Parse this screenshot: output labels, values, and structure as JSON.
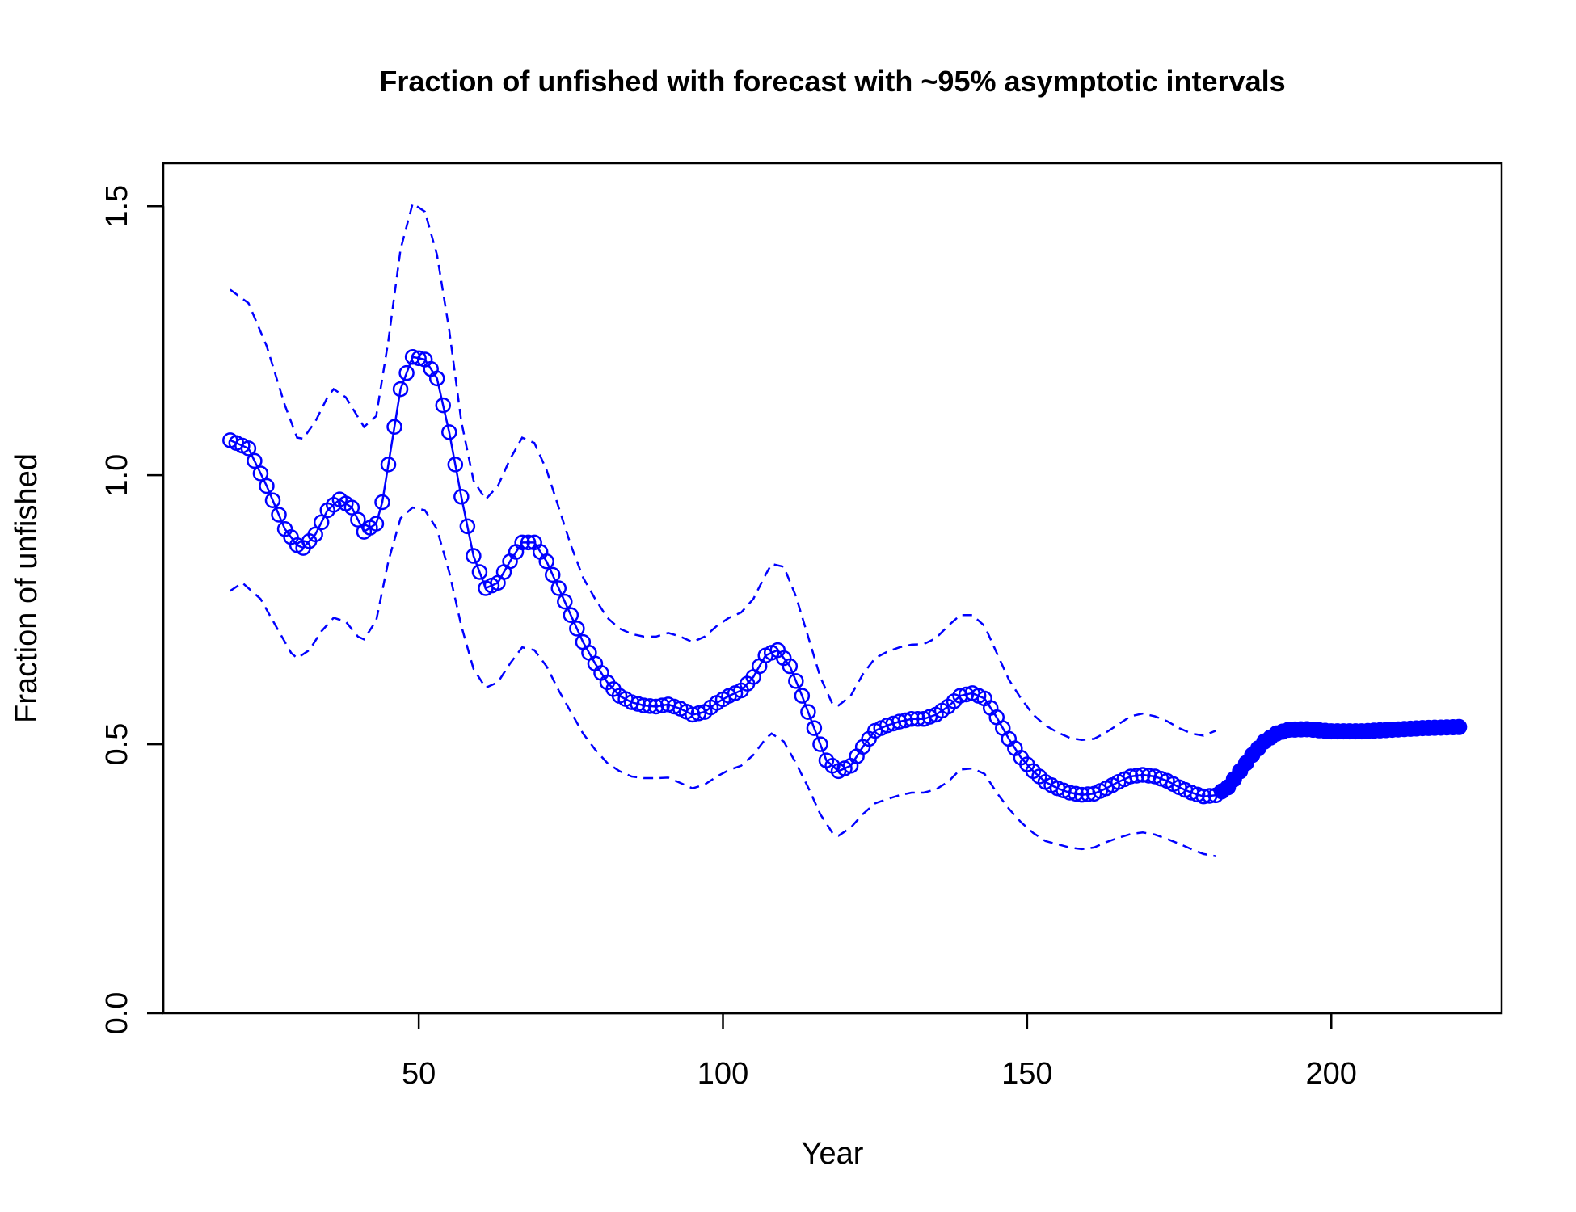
{
  "chart_data": {
    "type": "line",
    "title": "Fraction of unfished with forecast with ~95% asymptotic intervals",
    "xlabel": "Year",
    "ylabel": "Fraction of unfished",
    "xlim": [
      8,
      228
    ],
    "ylim": [
      0,
      1.58
    ],
    "x_ticks": [
      50,
      100,
      150,
      200
    ],
    "y_ticks": [
      0.0,
      0.5,
      1.0,
      1.5
    ],
    "x_tick_labels": [
      "50",
      "100",
      "150",
      "200"
    ],
    "y_tick_labels": [
      "0.0",
      "0.5",
      "1.0",
      "1.5"
    ],
    "grid": false,
    "colors": {
      "series": "#0000ff",
      "axis": "#000000"
    },
    "series": [
      {
        "role": "estimate",
        "style": "line-with-open-circles",
        "x_range": [
          19,
          181
        ],
        "points": [
          [
            19,
            1.065
          ],
          [
            22,
            1.05
          ],
          [
            25,
            0.98
          ],
          [
            28,
            0.9
          ],
          [
            30,
            0.87
          ],
          [
            31,
            0.865
          ],
          [
            33,
            0.89
          ],
          [
            35,
            0.935
          ],
          [
            37,
            0.955
          ],
          [
            39,
            0.94
          ],
          [
            41,
            0.895
          ],
          [
            43,
            0.91
          ],
          [
            44,
            0.95
          ],
          [
            45,
            1.02
          ],
          [
            47,
            1.16
          ],
          [
            49,
            1.22
          ],
          [
            51,
            1.215
          ],
          [
            53,
            1.18
          ],
          [
            55,
            1.08
          ],
          [
            57,
            0.96
          ],
          [
            59,
            0.85
          ],
          [
            61,
            0.79
          ],
          [
            63,
            0.8
          ],
          [
            65,
            0.84
          ],
          [
            67,
            0.875
          ],
          [
            69,
            0.875
          ],
          [
            71,
            0.84
          ],
          [
            73,
            0.79
          ],
          [
            75,
            0.74
          ],
          [
            77,
            0.69
          ],
          [
            79,
            0.65
          ],
          [
            81,
            0.615
          ],
          [
            83,
            0.59
          ],
          [
            85,
            0.578
          ],
          [
            87,
            0.572
          ],
          [
            89,
            0.57
          ],
          [
            91,
            0.574
          ],
          [
            93,
            0.566
          ],
          [
            95,
            0.555
          ],
          [
            97,
            0.56
          ],
          [
            99,
            0.577
          ],
          [
            101,
            0.59
          ],
          [
            103,
            0.6
          ],
          [
            105,
            0.625
          ],
          [
            107,
            0.665
          ],
          [
            109,
            0.675
          ],
          [
            111,
            0.645
          ],
          [
            113,
            0.59
          ],
          [
            115,
            0.53
          ],
          [
            117,
            0.47
          ],
          [
            119,
            0.45
          ],
          [
            121,
            0.46
          ],
          [
            123,
            0.495
          ],
          [
            125,
            0.525
          ],
          [
            127,
            0.535
          ],
          [
            129,
            0.542
          ],
          [
            131,
            0.547
          ],
          [
            133,
            0.547
          ],
          [
            135,
            0.555
          ],
          [
            137,
            0.57
          ],
          [
            139,
            0.59
          ],
          [
            141,
            0.595
          ],
          [
            143,
            0.585
          ],
          [
            145,
            0.55
          ],
          [
            147,
            0.51
          ],
          [
            149,
            0.475
          ],
          [
            151,
            0.45
          ],
          [
            153,
            0.43
          ],
          [
            155,
            0.418
          ],
          [
            157,
            0.41
          ],
          [
            159,
            0.406
          ],
          [
            161,
            0.408
          ],
          [
            163,
            0.418
          ],
          [
            165,
            0.43
          ],
          [
            167,
            0.44
          ],
          [
            169,
            0.443
          ],
          [
            171,
            0.44
          ],
          [
            173,
            0.432
          ],
          [
            175,
            0.42
          ],
          [
            177,
            0.41
          ],
          [
            179,
            0.403
          ],
          [
            181,
            0.405
          ]
        ]
      },
      {
        "role": "forecast",
        "style": "filled-circles",
        "x_range": [
          182,
          221
        ],
        "points": [
          [
            181,
            0.405
          ],
          [
            183,
            0.42
          ],
          [
            185,
            0.45
          ],
          [
            187,
            0.48
          ],
          [
            189,
            0.505
          ],
          [
            191,
            0.52
          ],
          [
            193,
            0.527
          ],
          [
            196,
            0.528
          ],
          [
            200,
            0.524
          ],
          [
            205,
            0.524
          ],
          [
            210,
            0.527
          ],
          [
            215,
            0.53
          ],
          [
            221,
            0.532
          ]
        ]
      },
      {
        "role": "upper-interval",
        "style": "dashed",
        "points": [
          [
            19,
            1.345
          ],
          [
            22,
            1.32
          ],
          [
            25,
            1.24
          ],
          [
            28,
            1.13
          ],
          [
            30,
            1.07
          ],
          [
            31,
            1.068
          ],
          [
            33,
            1.1
          ],
          [
            35,
            1.145
          ],
          [
            36,
            1.16
          ],
          [
            38,
            1.145
          ],
          [
            41,
            1.09
          ],
          [
            43,
            1.11
          ],
          [
            45,
            1.25
          ],
          [
            47,
            1.42
          ],
          [
            49,
            1.505
          ],
          [
            51,
            1.49
          ],
          [
            53,
            1.41
          ],
          [
            55,
            1.27
          ],
          [
            57,
            1.1
          ],
          [
            59,
            0.99
          ],
          [
            61,
            0.955
          ],
          [
            63,
            0.98
          ],
          [
            65,
            1.03
          ],
          [
            67,
            1.07
          ],
          [
            69,
            1.06
          ],
          [
            71,
            1.01
          ],
          [
            73,
            0.94
          ],
          [
            75,
            0.87
          ],
          [
            77,
            0.81
          ],
          [
            79,
            0.77
          ],
          [
            81,
            0.735
          ],
          [
            83,
            0.715
          ],
          [
            85,
            0.705
          ],
          [
            87,
            0.7
          ],
          [
            89,
            0.7
          ],
          [
            91,
            0.707
          ],
          [
            93,
            0.7
          ],
          [
            95,
            0.69
          ],
          [
            97,
            0.7
          ],
          [
            99,
            0.72
          ],
          [
            101,
            0.735
          ],
          [
            103,
            0.745
          ],
          [
            105,
            0.77
          ],
          [
            107,
            0.815
          ],
          [
            108,
            0.835
          ],
          [
            110,
            0.83
          ],
          [
            112,
            0.775
          ],
          [
            114,
            0.7
          ],
          [
            116,
            0.625
          ],
          [
            118,
            0.575
          ],
          [
            119,
            0.572
          ],
          [
            121,
            0.59
          ],
          [
            123,
            0.63
          ],
          [
            125,
            0.66
          ],
          [
            127,
            0.672
          ],
          [
            129,
            0.68
          ],
          [
            131,
            0.685
          ],
          [
            133,
            0.686
          ],
          [
            135,
            0.697
          ],
          [
            137,
            0.72
          ],
          [
            139,
            0.74
          ],
          [
            141,
            0.74
          ],
          [
            143,
            0.72
          ],
          [
            145,
            0.67
          ],
          [
            147,
            0.62
          ],
          [
            149,
            0.585
          ],
          [
            151,
            0.555
          ],
          [
            153,
            0.535
          ],
          [
            155,
            0.522
          ],
          [
            157,
            0.512
          ],
          [
            159,
            0.508
          ],
          [
            161,
            0.51
          ],
          [
            163,
            0.522
          ],
          [
            165,
            0.537
          ],
          [
            167,
            0.552
          ],
          [
            169,
            0.557
          ],
          [
            171,
            0.552
          ],
          [
            173,
            0.543
          ],
          [
            175,
            0.53
          ],
          [
            177,
            0.52
          ],
          [
            179,
            0.516
          ],
          [
            181,
            0.525
          ]
        ]
      },
      {
        "role": "lower-interval",
        "style": "dashed",
        "points": [
          [
            19,
            0.785
          ],
          [
            21,
            0.8
          ],
          [
            24,
            0.77
          ],
          [
            27,
            0.71
          ],
          [
            29,
            0.67
          ],
          [
            30,
            0.66
          ],
          [
            32,
            0.675
          ],
          [
            34,
            0.71
          ],
          [
            36,
            0.735
          ],
          [
            38,
            0.728
          ],
          [
            40,
            0.7
          ],
          [
            41,
            0.695
          ],
          [
            43,
            0.73
          ],
          [
            45,
            0.84
          ],
          [
            47,
            0.92
          ],
          [
            49,
            0.94
          ],
          [
            51,
            0.935
          ],
          [
            53,
            0.9
          ],
          [
            55,
            0.82
          ],
          [
            57,
            0.72
          ],
          [
            59,
            0.64
          ],
          [
            61,
            0.605
          ],
          [
            63,
            0.615
          ],
          [
            65,
            0.65
          ],
          [
            67,
            0.68
          ],
          [
            69,
            0.675
          ],
          [
            71,
            0.645
          ],
          [
            73,
            0.6
          ],
          [
            75,
            0.56
          ],
          [
            77,
            0.52
          ],
          [
            79,
            0.49
          ],
          [
            81,
            0.465
          ],
          [
            83,
            0.45
          ],
          [
            85,
            0.44
          ],
          [
            87,
            0.437
          ],
          [
            89,
            0.437
          ],
          [
            91,
            0.438
          ],
          [
            93,
            0.428
          ],
          [
            95,
            0.418
          ],
          [
            97,
            0.425
          ],
          [
            99,
            0.44
          ],
          [
            101,
            0.452
          ],
          [
            103,
            0.46
          ],
          [
            105,
            0.48
          ],
          [
            107,
            0.51
          ],
          [
            108,
            0.52
          ],
          [
            110,
            0.505
          ],
          [
            112,
            0.465
          ],
          [
            114,
            0.42
          ],
          [
            116,
            0.37
          ],
          [
            118,
            0.335
          ],
          [
            119,
            0.33
          ],
          [
            121,
            0.345
          ],
          [
            123,
            0.37
          ],
          [
            125,
            0.39
          ],
          [
            127,
            0.398
          ],
          [
            129,
            0.405
          ],
          [
            131,
            0.41
          ],
          [
            133,
            0.41
          ],
          [
            135,
            0.416
          ],
          [
            137,
            0.43
          ],
          [
            139,
            0.453
          ],
          [
            141,
            0.455
          ],
          [
            143,
            0.445
          ],
          [
            145,
            0.41
          ],
          [
            147,
            0.38
          ],
          [
            149,
            0.355
          ],
          [
            151,
            0.335
          ],
          [
            153,
            0.32
          ],
          [
            155,
            0.314
          ],
          [
            157,
            0.308
          ],
          [
            159,
            0.305
          ],
          [
            161,
            0.308
          ],
          [
            163,
            0.318
          ],
          [
            165,
            0.326
          ],
          [
            167,
            0.333
          ],
          [
            169,
            0.336
          ],
          [
            171,
            0.332
          ],
          [
            173,
            0.324
          ],
          [
            175,
            0.315
          ],
          [
            177,
            0.305
          ],
          [
            179,
            0.296
          ],
          [
            181,
            0.292
          ]
        ]
      }
    ]
  }
}
